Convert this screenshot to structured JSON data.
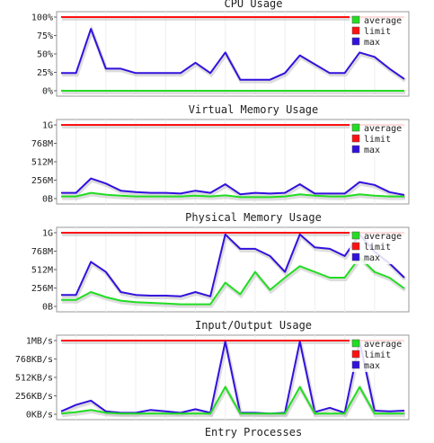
{
  "page_title_bottom": "Entry Processes",
  "colors": {
    "average": "#22dd22",
    "limit": "#ff1111",
    "max": "#3311dd"
  },
  "chart_data": [
    {
      "type": "line",
      "title": "CPU Usage",
      "y_ticks": [
        "100%",
        "75%",
        "50%",
        "25%",
        "0%"
      ],
      "ylim": [
        0,
        100
      ],
      "legend": [
        "average",
        "limit",
        "max"
      ],
      "legend_placement": "top-right",
      "x": [
        0,
        1,
        2,
        3,
        4,
        5,
        6,
        7,
        8,
        9,
        10,
        11,
        12,
        13,
        14,
        15,
        16,
        17,
        18,
        19,
        20,
        21,
        22,
        23
      ],
      "series": [
        {
          "name": "average",
          "color": "#22dd22",
          "values": [
            0,
            0,
            0,
            0,
            0,
            0,
            0,
            0,
            0,
            0,
            0,
            0,
            0,
            0,
            0,
            0,
            0,
            0,
            0,
            0,
            0,
            0,
            0,
            0
          ]
        },
        {
          "name": "limit",
          "color": "#ff1111",
          "values": [
            100,
            100,
            100,
            100,
            100,
            100,
            100,
            100,
            100,
            100,
            100,
            100,
            100,
            100,
            100,
            100,
            100,
            100,
            100,
            100,
            100,
            100,
            100,
            100
          ]
        },
        {
          "name": "max",
          "color": "#3311dd",
          "values": [
            24,
            24,
            84,
            30,
            30,
            24,
            24,
            24,
            24,
            38,
            24,
            52,
            15,
            15,
            15,
            24,
            48,
            36,
            24,
            24,
            52,
            46,
            30,
            16
          ]
        }
      ]
    },
    {
      "type": "line",
      "title": "Virtual Memory Usage",
      "y_ticks": [
        "1G",
        "768M",
        "512M",
        "256M",
        "0B"
      ],
      "ylim": [
        0,
        1024
      ],
      "legend": [
        "average",
        "limit",
        "max"
      ],
      "legend_placement": "top-right",
      "x": [
        0,
        1,
        2,
        3,
        4,
        5,
        6,
        7,
        8,
        9,
        10,
        11,
        12,
        13,
        14,
        15,
        16,
        17,
        18,
        19,
        20,
        21,
        22,
        23
      ],
      "series": [
        {
          "name": "average",
          "color": "#22dd22",
          "values": [
            30,
            30,
            80,
            55,
            40,
            30,
            30,
            30,
            30,
            40,
            30,
            45,
            20,
            20,
            20,
            30,
            60,
            40,
            30,
            30,
            60,
            40,
            30,
            30
          ]
        },
        {
          "name": "limit",
          "color": "#ff1111",
          "values": [
            1024,
            1024,
            1024,
            1024,
            1024,
            1024,
            1024,
            1024,
            1024,
            1024,
            1024,
            1024,
            1024,
            1024,
            1024,
            1024,
            1024,
            1024,
            1024,
            1024,
            1024,
            1024,
            1024,
            1024
          ]
        },
        {
          "name": "max",
          "color": "#3311dd",
          "values": [
            80,
            80,
            280,
            210,
            110,
            90,
            80,
            80,
            70,
            110,
            80,
            200,
            60,
            80,
            70,
            80,
            200,
            70,
            70,
            70,
            230,
            190,
            90,
            50
          ]
        }
      ]
    },
    {
      "type": "line",
      "title": "Physical Memory Usage",
      "y_ticks": [
        "1G",
        "768M",
        "512M",
        "256M",
        "0B"
      ],
      "ylim": [
        0,
        1024
      ],
      "legend": [
        "average",
        "limit",
        "max"
      ],
      "legend_placement": "top-right",
      "x": [
        0,
        1,
        2,
        3,
        4,
        5,
        6,
        7,
        8,
        9,
        10,
        11,
        12,
        13,
        14,
        15,
        16,
        17,
        18,
        19,
        20,
        21,
        22,
        23
      ],
      "series": [
        {
          "name": "average",
          "color": "#22dd22",
          "values": [
            90,
            90,
            200,
            130,
            80,
            60,
            50,
            40,
            30,
            30,
            30,
            330,
            170,
            480,
            230,
            400,
            560,
            480,
            400,
            400,
            680,
            480,
            400,
            250
          ]
        },
        {
          "name": "limit",
          "color": "#ff1111",
          "values": [
            1024,
            1024,
            1024,
            1024,
            1024,
            1024,
            1024,
            1024,
            1024,
            1024,
            1024,
            1024,
            1024,
            1024,
            1024,
            1024,
            1024,
            1024,
            1024,
            1024,
            1024,
            1024,
            1024,
            1024
          ]
        },
        {
          "name": "max",
          "color": "#3311dd",
          "values": [
            160,
            160,
            620,
            480,
            200,
            160,
            150,
            150,
            140,
            200,
            140,
            1000,
            800,
            800,
            700,
            480,
            1000,
            820,
            800,
            700,
            1000,
            760,
            600,
            400
          ]
        }
      ]
    },
    {
      "type": "line",
      "title": "Input/Output Usage",
      "y_ticks": [
        "1MB/s",
        "768KB/s",
        "512KB/s",
        "256KB/s",
        "0KB/s"
      ],
      "ylim": [
        0,
        1024
      ],
      "legend": [
        "average",
        "limit",
        "max"
      ],
      "legend_placement": "top-right",
      "x": [
        0,
        1,
        2,
        3,
        4,
        5,
        6,
        7,
        8,
        9,
        10,
        11,
        12,
        13,
        14,
        15,
        16,
        17,
        18,
        19,
        20,
        21,
        22,
        23
      ],
      "series": [
        {
          "name": "average",
          "color": "#22dd22",
          "values": [
            10,
            30,
            60,
            20,
            10,
            10,
            10,
            10,
            10,
            10,
            10,
            380,
            10,
            10,
            10,
            10,
            380,
            10,
            10,
            10,
            380,
            10,
            10,
            10
          ]
        },
        {
          "name": "limit",
          "color": "#ff1111",
          "values": [
            1024,
            1024,
            1024,
            1024,
            1024,
            1024,
            1024,
            1024,
            1024,
            1024,
            1024,
            1024,
            1024,
            1024,
            1024,
            1024,
            1024,
            1024,
            1024,
            1024,
            1024,
            1024,
            1024,
            1024
          ]
        },
        {
          "name": "max",
          "color": "#3311dd",
          "values": [
            40,
            130,
            190,
            40,
            20,
            20,
            60,
            40,
            20,
            70,
            20,
            1010,
            20,
            20,
            10,
            20,
            1010,
            30,
            90,
            20,
            1010,
            50,
            40,
            50
          ]
        }
      ]
    }
  ]
}
